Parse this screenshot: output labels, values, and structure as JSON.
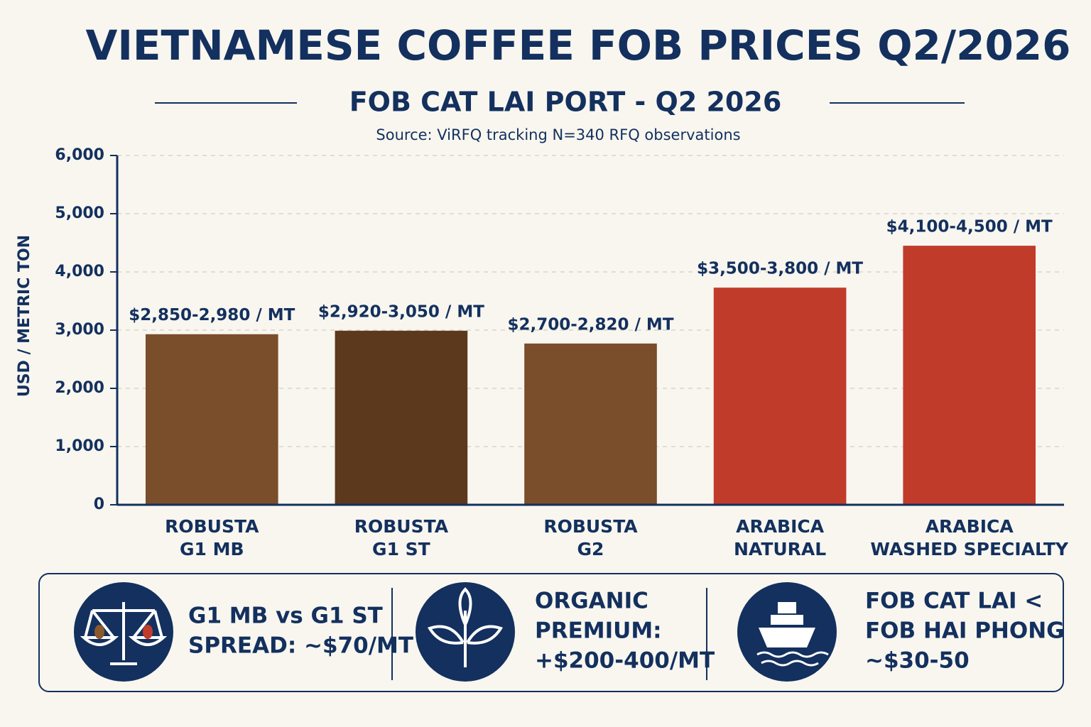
{
  "chart_data": {
    "type": "bar",
    "title": "VIETNAMESE COFFEE FOB PRICES Q2/2026",
    "subtitle": "FOB CAT LAI PORT - Q2 2026",
    "source": "Source: ViRFQ tracking N=340 RFQ observations",
    "y_label": "USD / METRIC TON",
    "categories": [
      [
        "ROBUSTA",
        "G1 MB"
      ],
      [
        "ROBUSTA",
        "G1 ST"
      ],
      [
        "ROBUSTA",
        "G2"
      ],
      [
        "ARABICA",
        "NATURAL"
      ],
      [
        "ARABICA",
        "WASHED SPECIALTY"
      ]
    ],
    "values": [
      2930,
      2990,
      2770,
      3730,
      4450
    ],
    "value_labels": [
      "$2,850-2,980 / MT",
      "$2,920-3,050 / MT",
      "$2,700-2,820 / MT",
      "$3,500-3,800 / MT",
      "$4,100-4,500 / MT"
    ],
    "colors": [
      "#7a4d2b",
      "#5c391c",
      "#7a4d2b",
      "#c13b2b",
      "#c13b2b"
    ],
    "ylim": [
      0,
      6000
    ],
    "yticks": [
      0,
      {
        "value": 1000,
        "label": "1,000"
      },
      {
        "value": 2000,
        "label": "2,000"
      },
      {
        "value": 3000,
        "label": "3,000"
      },
      {
        "value": 4000,
        "label": "4,000"
      },
      {
        "value": 5000,
        "label": "5,000"
      },
      {
        "value": 6000,
        "label": "6,000"
      }
    ],
    "grid": true
  },
  "notes": [
    [
      "G1 MB vs G1 ST",
      "SPREAD: ~$70/MT"
    ],
    [
      "ORGANIC",
      "PREMIUM:",
      "+$200-400/MT"
    ],
    [
      "FOB CAT LAI <",
      "FOB HAI PHONG",
      "~$30-50"
    ]
  ]
}
